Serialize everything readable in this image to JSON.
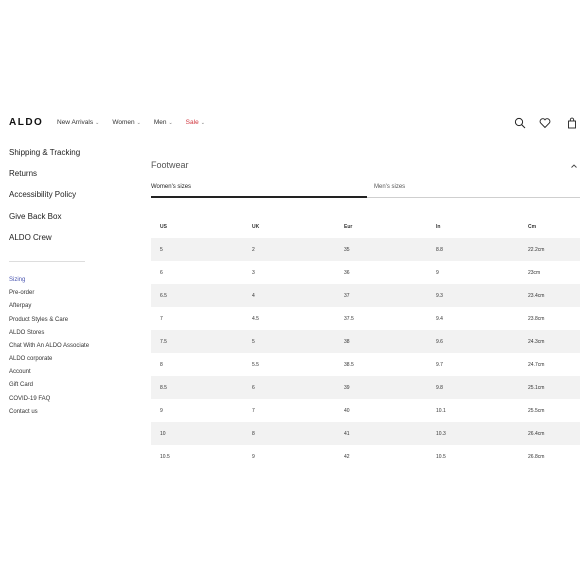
{
  "header": {
    "logo": "ALDO",
    "nav": [
      {
        "label": "New Arrivals",
        "chevron": "⌄"
      },
      {
        "label": "Women",
        "chevron": "⌄"
      },
      {
        "label": "Men",
        "chevron": "⌄"
      },
      {
        "label": "Sale",
        "chevron": "⌄"
      }
    ],
    "icons": [
      "search-icon",
      "heart-icon",
      "bag-icon"
    ],
    "sale_color": "#d0353d"
  },
  "sidebar": {
    "primary": [
      "Shipping & Tracking",
      "Returns",
      "Accessibility Policy",
      "Give Back Box",
      "ALDO Crew"
    ],
    "secondary": [
      "Sizing",
      "Pre-order",
      "Afterpay",
      "Product Styles & Care",
      "ALDO Stores",
      "Chat With An ALDO Associate",
      "ALDO corporate",
      "Account",
      "Gift Card",
      "COVID-19 FAQ",
      "Contact us"
    ],
    "active_color": "#4a55b0"
  },
  "main": {
    "section_title": "Footwear",
    "tabs": {
      "active": "Women's sizes",
      "inactive": "Men's sizes"
    },
    "table": {
      "headers": [
        "US",
        "UK",
        "Eur",
        "In",
        "Cm"
      ],
      "rows": [
        [
          "5",
          "2",
          "35",
          "8.8",
          "22.2cm"
        ],
        [
          "6",
          "3",
          "36",
          "9",
          "23cm"
        ],
        [
          "6.5",
          "4",
          "37",
          "9.3",
          "23.4cm"
        ],
        [
          "7",
          "4.5",
          "37.5",
          "9.4",
          "23.8cm"
        ],
        [
          "7.5",
          "5",
          "38",
          "9.6",
          "24.3cm"
        ],
        [
          "8",
          "5.5",
          "38.5",
          "9.7",
          "24.7cm"
        ],
        [
          "8.5",
          "6",
          "39",
          "9.8",
          "25.1cm"
        ],
        [
          "9",
          "7",
          "40",
          "10.1",
          "25.5cm"
        ],
        [
          "10",
          "8",
          "41",
          "10.3",
          "26.4cm"
        ],
        [
          "10.5",
          "9",
          "42",
          "10.5",
          "26.8cm"
        ]
      ]
    }
  }
}
